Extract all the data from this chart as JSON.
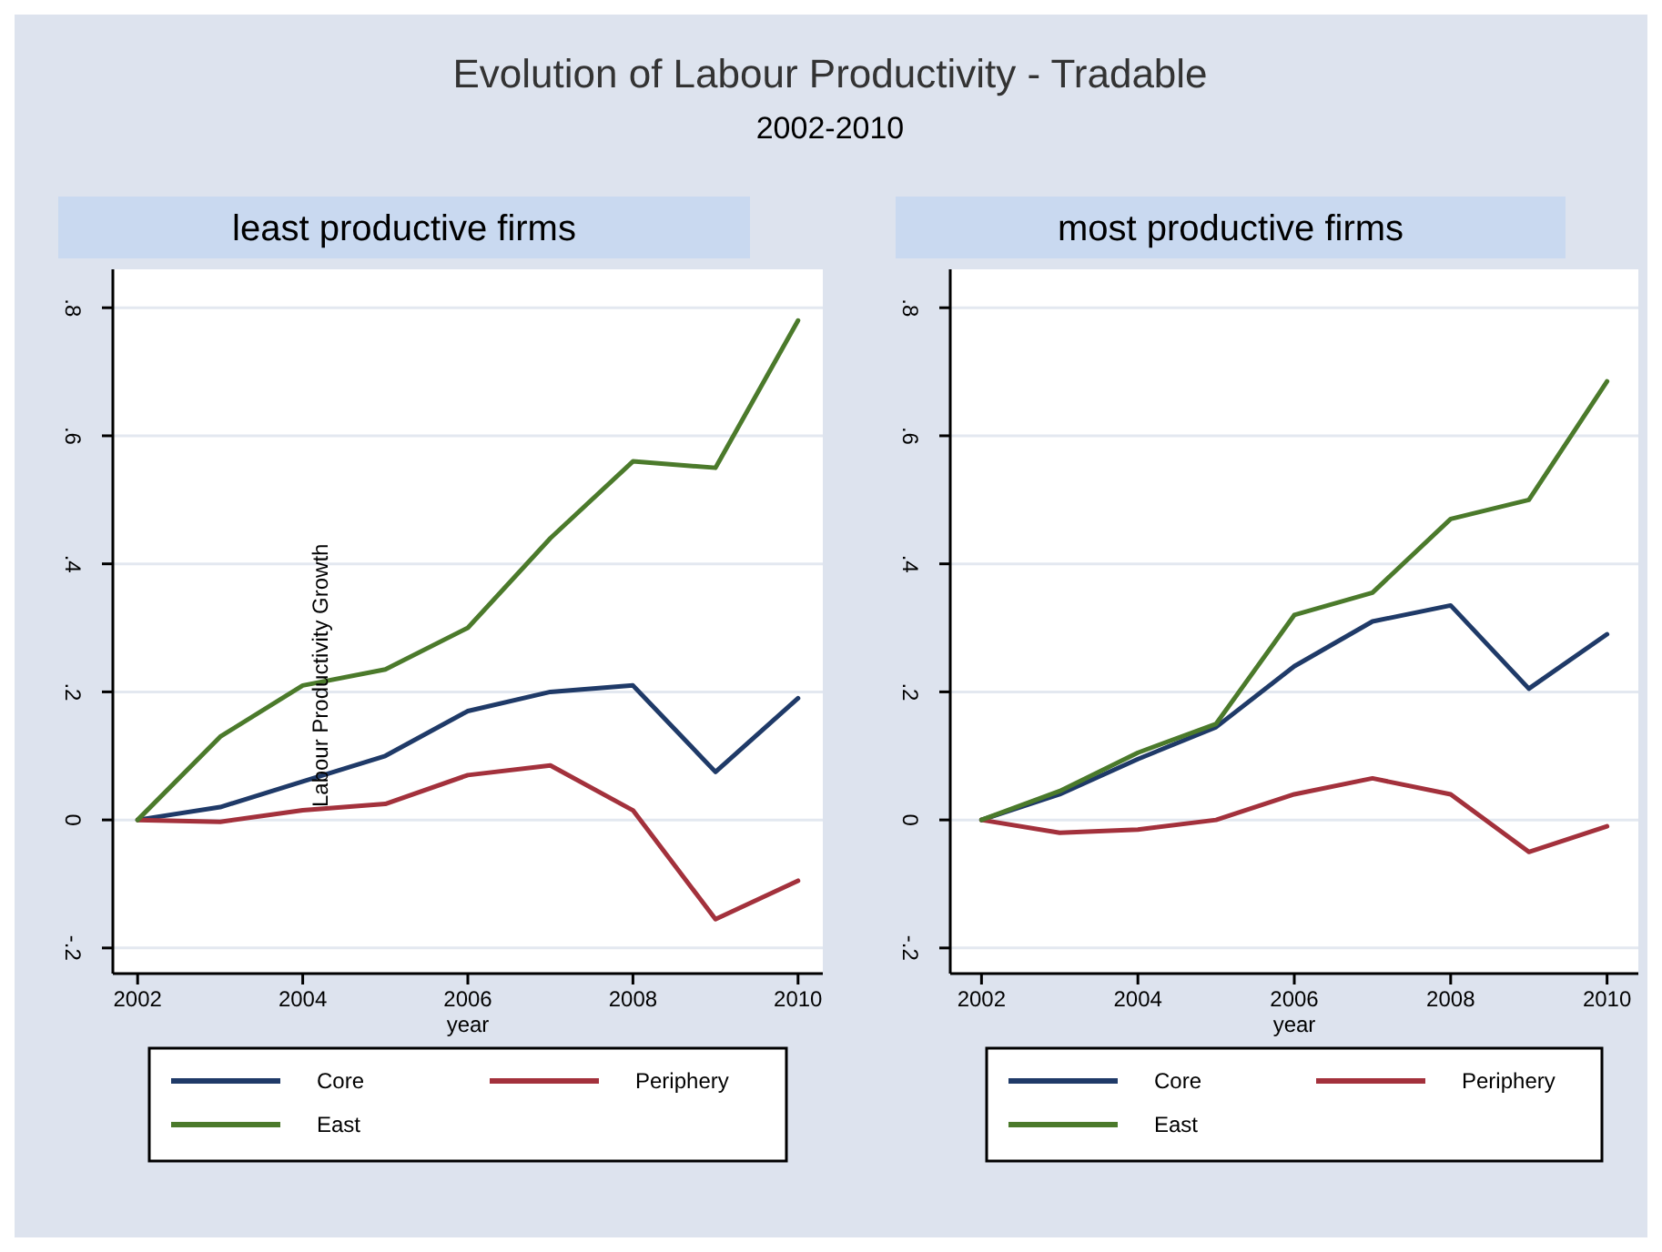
{
  "chart_data": [
    {
      "type": "line",
      "title": "Evolution of Labour Productivity - Tradable",
      "subtitle": "2002-2010",
      "annotations": [
        "least productive firms"
      ],
      "xlabel": "year",
      "ylabel": "Labour Productivity Growth",
      "x": [
        2002,
        2003,
        2004,
        2005,
        2006,
        2007,
        2008,
        2009,
        2010
      ],
      "xlim": [
        2001.7,
        2010.3
      ],
      "xticks": [
        2002,
        2004,
        2006,
        2008,
        2010
      ],
      "ylim": [
        -0.24,
        0.86
      ],
      "yticks": [
        {
          "value": -0.2,
          "label": "-.2"
        },
        0,
        {
          "value": 0.2,
          "label": ".2"
        },
        {
          "value": 0.4,
          "label": ".4"
        },
        {
          "value": 0.6,
          "label": ".6"
        },
        {
          "value": 0.8,
          "label": ".8"
        }
      ],
      "grid": "y",
      "legend": "bottom",
      "line_style": "solid",
      "series": [
        {
          "name": "Core",
          "color": "#1f3a68",
          "values": [
            0,
            0.02,
            0.06,
            0.1,
            0.17,
            0.2,
            0.21,
            0.075,
            0.19
          ]
        },
        {
          "name": "Periphery",
          "color": "#a3313c",
          "values": [
            0,
            -0.003,
            0.015,
            0.025,
            0.07,
            0.085,
            0.015,
            -0.155,
            -0.095
          ]
        },
        {
          "name": "East",
          "color": "#4b7a2b",
          "values": [
            0,
            0.13,
            0.21,
            0.235,
            0.3,
            0.44,
            0.56,
            0.55,
            0.78
          ]
        }
      ]
    },
    {
      "type": "line",
      "annotations": [
        "most productive firms"
      ],
      "xlabel": "year",
      "x": [
        2002,
        2003,
        2004,
        2005,
        2006,
        2007,
        2008,
        2009,
        2010
      ],
      "xlim": [
        2001.6,
        2010.4
      ],
      "xticks": [
        2002,
        2004,
        2006,
        2008,
        2010
      ],
      "ylim": [
        -0.24,
        0.86
      ],
      "yticks": [
        {
          "value": -0.2,
          "label": "-.2"
        },
        0,
        {
          "value": 0.2,
          "label": ".2"
        },
        {
          "value": 0.4,
          "label": ".4"
        },
        {
          "value": 0.6,
          "label": ".6"
        },
        {
          "value": 0.8,
          "label": ".8"
        }
      ],
      "grid": "y",
      "legend": "bottom",
      "line_style": "solid",
      "series": [
        {
          "name": "Core",
          "color": "#1f3a68",
          "values": [
            0,
            0.04,
            0.095,
            0.145,
            0.24,
            0.31,
            0.335,
            0.205,
            0.29
          ]
        },
        {
          "name": "Periphery",
          "color": "#a3313c",
          "values": [
            0,
            -0.02,
            -0.015,
            0,
            0.04,
            0.065,
            0.04,
            -0.05,
            -0.01
          ]
        },
        {
          "name": "East",
          "color": "#4b7a2b",
          "values": [
            0,
            0.045,
            0.105,
            0.15,
            0.32,
            0.355,
            0.47,
            0.5,
            0.685
          ]
        }
      ]
    }
  ]
}
